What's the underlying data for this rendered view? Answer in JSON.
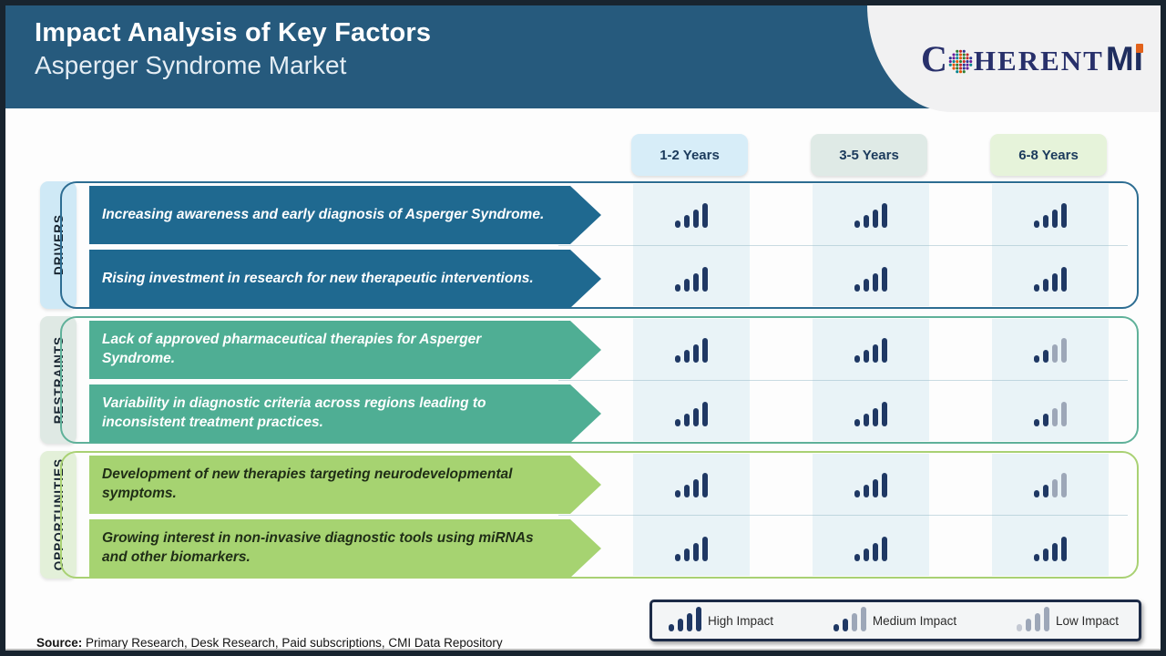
{
  "header": {
    "title": "Impact Analysis of Key Factors",
    "subtitle": "Asperger Syndrome Market",
    "logo": {
      "part1": "C",
      "part2": "HERENT",
      "part3": "MI"
    }
  },
  "columns": [
    {
      "label": "1-2 Years",
      "bg": "#d7edf8"
    },
    {
      "label": "3-5 Years",
      "bg": "#dfeae6"
    },
    {
      "label": "6-8 Years",
      "bg": "#e6f3da"
    }
  ],
  "groups": [
    {
      "label": "DRIVERS",
      "label_bg": "#cfe9f6",
      "arrow_color": "#1f6990",
      "border_color": "#2d6d92",
      "text_color": "#ffffff",
      "rows": [
        {
          "text": "Increasing awareness and early diagnosis of Asperger Syndrome.",
          "impacts": [
            "high",
            "high",
            "high"
          ]
        },
        {
          "text": "Rising investment in research for new therapeutic interventions.",
          "impacts": [
            "high",
            "high",
            "high"
          ]
        }
      ]
    },
    {
      "label": "RESTRAINTS",
      "label_bg": "#dfe9e4",
      "arrow_color": "#4fae94",
      "border_color": "#5fb199",
      "text_color": "#ffffff",
      "rows": [
        {
          "text": "Lack of approved pharmaceutical therapies for Asperger Syndrome.",
          "impacts": [
            "high",
            "high",
            "medium"
          ]
        },
        {
          "text": "Variability in diagnostic criteria across regions leading to inconsistent treatment practices.",
          "impacts": [
            "high",
            "high",
            "medium"
          ]
        }
      ]
    },
    {
      "label": "OPPORTUNITIES",
      "label_bg": "#e3f0d9",
      "arrow_color": "#a6d371",
      "border_color": "#a9d173",
      "text_color": "#1f2d16",
      "rows": [
        {
          "text": "Development of new therapies targeting neurodevelopmental symptoms.",
          "impacts": [
            "high",
            "high",
            "medium"
          ]
        },
        {
          "text": "Growing interest in non-invasive diagnostic tools using miRNAs and other biomarkers.",
          "impacts": [
            "high",
            "high",
            "high"
          ]
        }
      ]
    }
  ],
  "legend": [
    {
      "label": "High Impact",
      "level": "high"
    },
    {
      "label": "Medium Impact",
      "level": "medium"
    },
    {
      "label": "Low Impact",
      "level": "low"
    }
  ],
  "impact_colors": {
    "dark": "#1f3864",
    "gray": "#9da7b8",
    "light_gray": "#c4c9d3"
  },
  "source": {
    "label": "Source:",
    "text": " Primary Research, Desk Research, Paid subscriptions, CMI Data Repository"
  }
}
